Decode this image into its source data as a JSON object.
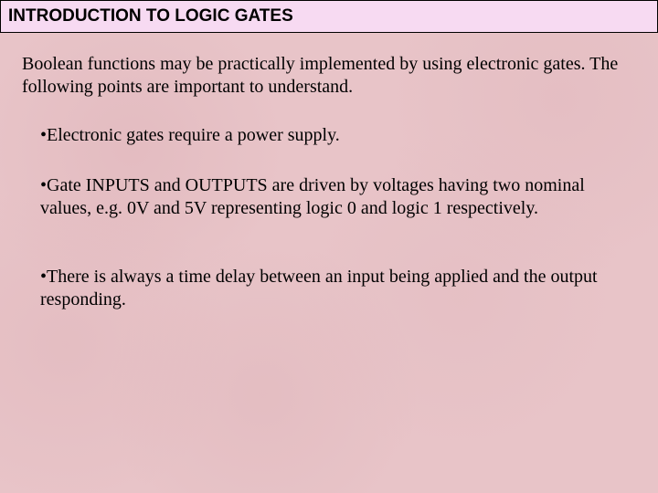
{
  "header": {
    "title": "INTRODUCTION TO LOGIC GATES",
    "background_color": "#f7daf2",
    "border_color": "#000000",
    "font_family": "Arial",
    "font_weight": "bold",
    "font_size_pt": 14
  },
  "body": {
    "background_color": "#e8c4c8",
    "texture": "pink-marble",
    "font_family": "Times New Roman",
    "font_size_pt": 15,
    "text_color": "#000000"
  },
  "intro_text": "Boolean functions may be practically implemented by using electronic gates. The following points are important to understand.",
  "bullets": [
    "•Electronic gates require a power supply.",
    "•Gate INPUTS  and OUTPUTS are driven by voltages having two nominal values, e.g. 0V and 5V representing logic 0 and logic 1 respectively.",
    "•There is always a time delay between an input being applied and the output responding."
  ]
}
